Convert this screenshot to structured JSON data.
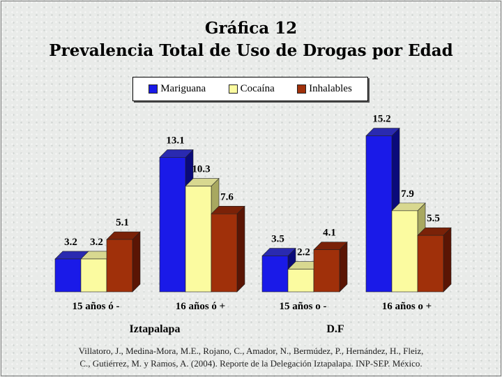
{
  "header": {
    "title_line1": "Gráfica 12",
    "title_line2": "Prevalencia Total de Uso de Drogas por Edad"
  },
  "legend": [
    {
      "name": "Mariguana",
      "color": "#1a1ae8"
    },
    {
      "name": "Cocaína",
      "color": "#fbfba0"
    },
    {
      "name": "Inhalables",
      "color": "#a0300a"
    }
  ],
  "chart_data": {
    "type": "bar",
    "title": "Prevalencia Total de Uso de Drogas por Edad",
    "categories": [
      "15 años ó -",
      "16 años ó +",
      "15 años o -",
      "16 años o +"
    ],
    "groups": [
      {
        "label": "Iztapalapa",
        "categories": [
          "15 años ó -",
          "16 años ó +"
        ]
      },
      {
        "label": "D.F",
        "categories": [
          "15 años o -",
          "16 años o +"
        ]
      }
    ],
    "series": [
      {
        "name": "Mariguana",
        "values": [
          3.2,
          13.1,
          3.5,
          15.2
        ]
      },
      {
        "name": "Cocaína",
        "values": [
          3.2,
          10.3,
          2.2,
          7.9
        ]
      },
      {
        "name": "Inhalables",
        "values": [
          5.1,
          7.6,
          4.1,
          5.5
        ]
      }
    ],
    "value_labels": [
      [
        "3.2",
        "13.1",
        "3.5",
        "15.2"
      ],
      [
        "3.2",
        "10.3",
        "2.2",
        "7.9"
      ],
      [
        "5.1",
        "7.6",
        "4.1",
        "5.5"
      ]
    ],
    "ylim": [
      0,
      16
    ],
    "grid": false,
    "legend_position": "top"
  },
  "footer": {
    "line1": "Villatoro, J., Medina-Mora, M.E., Rojano, C., Amador, N., Bermúdez, P., Hernández, H., Fleiz,",
    "line2": "C., Gutiérrez, M. y Ramos, A. (2004). Reporte de la Delegación Iztapalapa. INP-SEP. México."
  }
}
